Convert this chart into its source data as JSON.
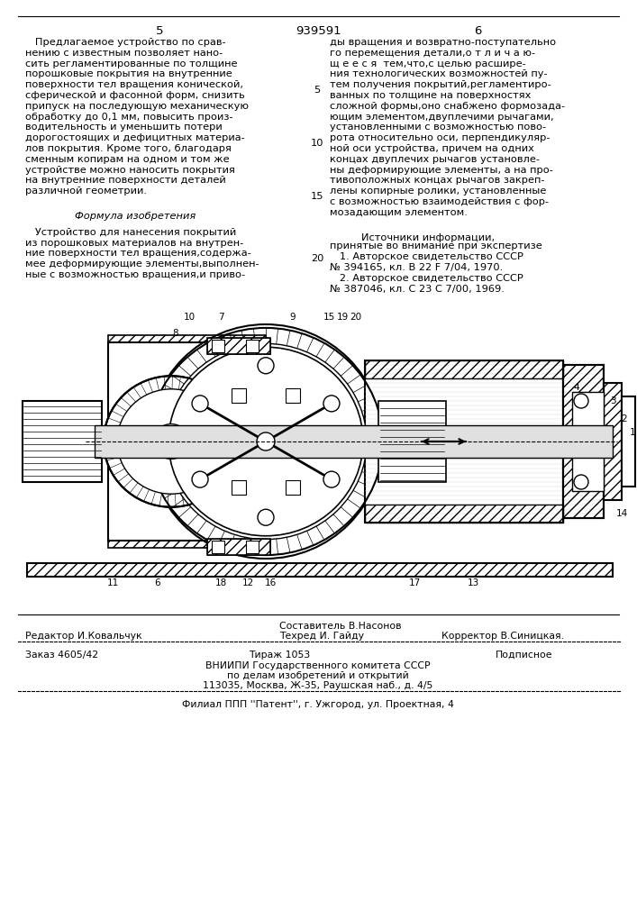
{
  "patent_number": "939591",
  "page_left": "5",
  "page_right": "6",
  "bg_color": "#ffffff",
  "left_col_lines": [
    "   Предлагаемое устройство по срав-",
    "нению с известным позволяет нано-",
    "сить регламентированные по толщине",
    "порошковые покрытия на внутренние",
    "поверхности тел вращения конической,",
    "сферической и фасонной форм, снизить",
    "припуск на последующую механическую",
    "обработку до 0,1 мм, повысить произ-",
    "водительность и уменьшить потери",
    "дорогостоящих и дефицитных материа-",
    "лов покрытия. Кроме того, благодаря",
    "сменным копирам на одном и том же",
    "устройстве можно наносить покрытия",
    "на внутренние поверхности деталей",
    "различной геометрии."
  ],
  "formula_title": "Формула изобретения",
  "formula_lines": [
    "   Устройство для нанесения покрытий",
    "из порошковых материалов на внутрен-",
    "ние поверхности тел вращения,содержа-",
    "мее деформирующие элементы,выполнен-",
    "ные с возможностью вращения,и приво-"
  ],
  "right_col_lines": [
    "ды вращения и возвратно-поступательно",
    "го перемещения детали,о т л и ч а ю-",
    "щ е е с я  тем,что,с целью расшире-",
    "ния технологических возможностей пу-",
    "тем получения покрытий,регламентиро-",
    "ванных по толщине на поверхностях",
    "сложной формы,оно снабжено формозада-",
    "ющим элементом,двуплечими рычагами,",
    "установленными с возможностью пово-",
    "рота относительно оси, перпендикуляр-",
    "ной оси устройства, причем на одних",
    "концах двуплечих рычагов установле-",
    "ны деформирующие элементы, а на про-",
    "тивоположных концах рычагов закреп-",
    "лены копирные ролики, установленные",
    "с возможностью взаимодействия с фор-",
    "мозадающим элементом."
  ],
  "sources_title": "   Источники информации,",
  "sources_lines": [
    "принятые во внимание при экспертизе",
    "   1. Авторское свидетельство СССР",
    "№ 394165, кл. В 22 F 7/04, 1970.",
    "   2. Авторское свидетельство СССР",
    "№ 387046, кл. С 23 С 7/00, 1969."
  ],
  "line_nums": [
    {
      "n": "5",
      "row": 5
    },
    {
      "n": "10",
      "row": 10
    },
    {
      "n": "15",
      "row": 15
    },
    {
      "n": "20",
      "row": 20
    }
  ],
  "footer_editor": "Редактор И.Ковальчук",
  "footer_composer": "Составитель В.Насонов",
  "footer_tekhred": "Техред И. Гайду",
  "footer_corrector": "Корректор В.Синицкая.",
  "footer_order": "Заказ 4605/42",
  "footer_tirazh": "Тираж 1053",
  "footer_podp": "Подписное",
  "footer_vnipi1": "ВНИИПИ Государственного комитета СССР",
  "footer_vnipi2": "по делам изобретений и открытий",
  "footer_vnipi3": "113035, Москва, Ж-35, Раушская наб., д. 4/5",
  "footer_filial": "Филиал ППП ''Патент'', г. Ужгород, ул. Проектная, 4",
  "font_body": 8.2,
  "font_header": 9.5,
  "font_footer": 7.8
}
